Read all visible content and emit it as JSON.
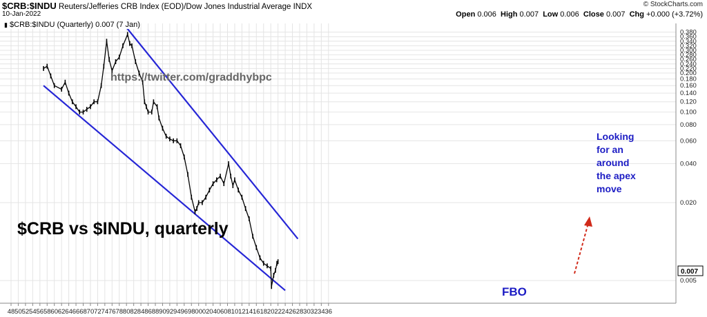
{
  "header": {
    "symbol": "$CRB:$INDU",
    "description": "Reuters/Jefferies CRB Index (EOD)/Dow Jones Industrial Average",
    "exchange": "INDX",
    "date": "10-Jan-2022",
    "watermark": "© StockCharts.com",
    "ohlc": {
      "open_label": "Open",
      "open": "0.006",
      "high_label": "High",
      "high": "0.007",
      "low_label": "Low",
      "low": "0.006",
      "close_label": "Close",
      "close": "0.007",
      "chg_label": "Chg",
      "chg": "+0.000 (+3.72%)"
    },
    "legend": "$CRB:$INDU (Quarterly) 0.007 (7 Jan)",
    "close_marker": "0.007"
  },
  "annotations": {
    "twitter": "https://twitter.com/graddhybpc",
    "main_label": "$CRB vs $INDU, quarterly",
    "fbo": "FBO",
    "apex_lines": [
      "Looking",
      "for an",
      "around",
      "the apex",
      "move"
    ]
  },
  "colors": {
    "trendline": "#2626d6",
    "arrow": "#d12a1a",
    "annotation_text": "#1c1cc4",
    "price": "#000000",
    "grid": "#e4e4e4"
  },
  "chart_data": {
    "type": "line",
    "title": "$CRB:$INDU",
    "scale": "log",
    "x_ticks": [
      "48",
      "50",
      "52",
      "54",
      "56",
      "58",
      "60",
      "62",
      "64",
      "66",
      "68",
      "70",
      "72",
      "74",
      "76",
      "78",
      "80",
      "82",
      "84",
      "86",
      "88",
      "90",
      "92",
      "94",
      "96",
      "98",
      "00",
      "02",
      "04",
      "06",
      "08",
      "10",
      "12",
      "14",
      "16",
      "18",
      "20",
      "22",
      "24",
      "26",
      "28",
      "30",
      "32",
      "34",
      "36"
    ],
    "y_ticks": [
      "0.380",
      "0.360",
      "0.340",
      "0.320",
      "0.300",
      "0.280",
      "0.260",
      "0.240",
      "0.220",
      "0.200",
      "0.180",
      "0.160",
      "0.140",
      "0.120",
      "0.100",
      "0.080",
      "0.060",
      "0.040",
      "0.020",
      "0.005"
    ],
    "ylim": [
      0.004,
      0.4
    ],
    "series": [
      {
        "x": [
          1957,
          1958,
          1959,
          1960,
          1962,
          1963,
          1964,
          1965,
          1966,
          1967,
          1968,
          1969,
          1970,
          1971,
          1972,
          1973,
          1973.7,
          1974.5,
          1975.2,
          1976,
          1977,
          1978,
          1979,
          1980.3,
          1980.9,
          1981.5,
          1982.5,
          1983.5,
          1984.5,
          1985,
          1985.5,
          1986,
          1987,
          1987.5,
          1988.5,
          1989,
          1990,
          1991,
          1992,
          1993,
          1994,
          1995,
          1996,
          1997,
          1998,
          1999,
          1999.5,
          2000,
          2001,
          2002,
          2003,
          2004,
          2005,
          2006,
          2007,
          2008.3,
          2008.9,
          2009.5,
          2010,
          2011,
          2012,
          2013,
          2014,
          2015,
          2016,
          2017,
          2018,
          2019,
          2020,
          2020.2,
          2020.8,
          2021.3,
          2021.7,
          2022
        ],
        "y": [
          0.22,
          0.23,
          0.19,
          0.16,
          0.15,
          0.17,
          0.14,
          0.12,
          0.11,
          0.1,
          0.1,
          0.105,
          0.11,
          0.12,
          0.12,
          0.16,
          0.23,
          0.34,
          0.26,
          0.21,
          0.25,
          0.27,
          0.32,
          0.37,
          0.33,
          0.32,
          0.25,
          0.2,
          0.17,
          0.12,
          0.11,
          0.1,
          0.1,
          0.12,
          0.11,
          0.09,
          0.075,
          0.065,
          0.062,
          0.06,
          0.06,
          0.055,
          0.045,
          0.033,
          0.022,
          0.017,
          0.018,
          0.02,
          0.02,
          0.022,
          0.025,
          0.028,
          0.03,
          0.032,
          0.028,
          0.04,
          0.032,
          0.027,
          0.03,
          0.025,
          0.022,
          0.018,
          0.015,
          0.011,
          0.009,
          0.0075,
          0.0068,
          0.0065,
          0.0062,
          0.0045,
          0.0055,
          0.006,
          0.0068,
          0.007
        ]
      }
    ],
    "trendlines": [
      {
        "name": "",
        "from": [
          1957,
          0.16
        ],
        "to": [
          2024,
          0.0042
        ]
      },
      {
        "name": "",
        "from": [
          1980,
          0.4
        ],
        "to": [
          2027.5,
          0.0105
        ]
      }
    ]
  }
}
